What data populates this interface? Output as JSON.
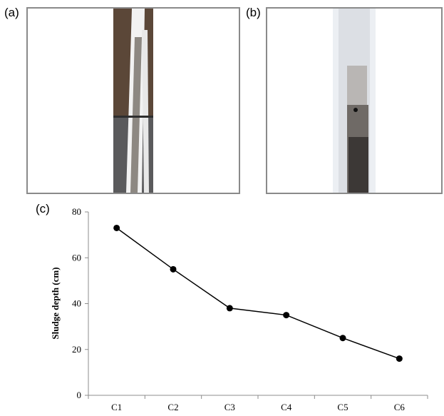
{
  "panels": {
    "a": {
      "label": "(a)"
    },
    "b": {
      "label": "(b)"
    },
    "c": {
      "label": "(c)"
    }
  },
  "chart_data": {
    "type": "line",
    "categories": [
      "C1",
      "C2",
      "C3",
      "C4",
      "C5",
      "C6"
    ],
    "series": [
      {
        "values": [
          73,
          55,
          38,
          35,
          25,
          16
        ]
      }
    ],
    "title": "",
    "xlabel": "",
    "ylabel": "Sludge depth (cm)",
    "ylim": [
      0,
      80
    ],
    "yticks": [
      0,
      20,
      40,
      60,
      80
    ],
    "grid": false,
    "legend": "none",
    "colors": {
      "line": "#000000",
      "marker": "#000000",
      "axis": "#8c8c8c"
    }
  }
}
